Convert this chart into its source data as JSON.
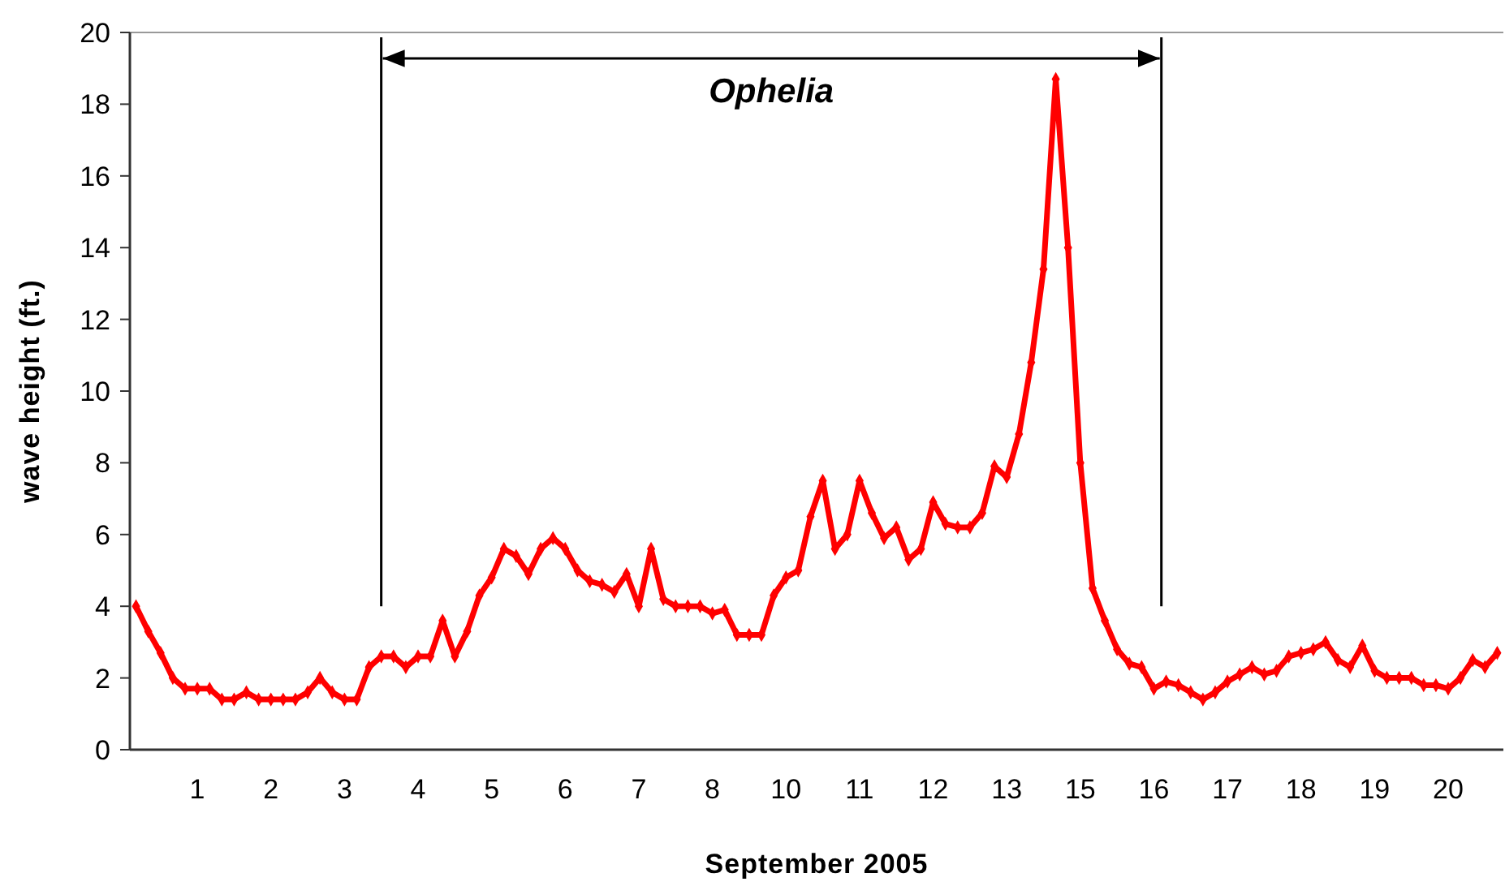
{
  "chart_data": {
    "type": "line",
    "xlabel": "September 2005",
    "ylabel": "wave height (ft.)",
    "categories": [
      null,
      null,
      null,
      null,
      null,
      "1",
      null,
      null,
      null,
      null,
      null,
      "2",
      null,
      null,
      null,
      null,
      null,
      "3",
      null,
      null,
      null,
      null,
      null,
      "4",
      null,
      null,
      null,
      null,
      null,
      "5",
      null,
      null,
      null,
      null,
      null,
      "6",
      null,
      null,
      null,
      null,
      null,
      "7",
      null,
      null,
      null,
      null,
      null,
      "8",
      null,
      null,
      null,
      null,
      null,
      "10",
      null,
      null,
      null,
      null,
      null,
      "11",
      null,
      null,
      null,
      null,
      null,
      "12",
      null,
      null,
      null,
      null,
      null,
      "13",
      null,
      null,
      null,
      null,
      null,
      "15",
      null,
      null,
      null,
      null,
      null,
      "16",
      null,
      null,
      null,
      null,
      null,
      "17",
      null,
      null,
      null,
      null,
      null,
      "18",
      null,
      null,
      null,
      null,
      null,
      "19",
      null,
      null,
      null,
      null,
      null,
      "20",
      null,
      null,
      null,
      null
    ],
    "ylim": [
      0,
      20
    ],
    "yticks": [
      0,
      2,
      4,
      6,
      8,
      10,
      12,
      14,
      16,
      18,
      20
    ],
    "grid": false,
    "marker": "diamond",
    "line_style": "solid",
    "annotations": [
      "Ophelia"
    ],
    "series": [
      {
        "color": "#ff0000",
        "values": [
          4.0,
          3.3,
          2.7,
          2.0,
          1.7,
          1.7,
          1.7,
          1.4,
          1.4,
          1.6,
          1.4,
          1.4,
          1.4,
          1.4,
          1.6,
          2.0,
          1.6,
          1.4,
          1.4,
          2.3,
          2.6,
          2.6,
          2.3,
          2.6,
          2.6,
          3.6,
          2.6,
          3.3,
          4.3,
          4.8,
          5.6,
          5.4,
          4.9,
          5.6,
          5.9,
          5.6,
          5.0,
          4.7,
          4.6,
          4.4,
          4.9,
          4.0,
          5.6,
          4.2,
          4.0,
          4.0,
          4.0,
          3.8,
          3.9,
          3.2,
          3.2,
          3.2,
          4.3,
          4.8,
          5.0,
          6.5,
          7.5,
          5.6,
          6.0,
          7.5,
          6.6,
          5.9,
          6.2,
          5.3,
          5.6,
          6.9,
          6.3,
          6.2,
          6.2,
          6.6,
          7.9,
          7.6,
          8.8,
          10.8,
          13.4,
          18.7,
          14.0,
          8.0,
          4.5,
          3.6,
          2.8,
          2.4,
          2.3,
          1.7,
          1.9,
          1.8,
          1.6,
          1.4,
          1.6,
          1.9,
          2.1,
          2.3,
          2.1,
          2.2,
          2.6,
          2.7,
          2.8,
          3.0,
          2.5,
          2.3,
          2.9,
          2.2,
          2.0,
          2.0,
          2.0,
          1.8,
          1.8,
          1.7,
          2.0,
          2.5,
          2.3,
          2.7
        ]
      }
    ]
  }
}
